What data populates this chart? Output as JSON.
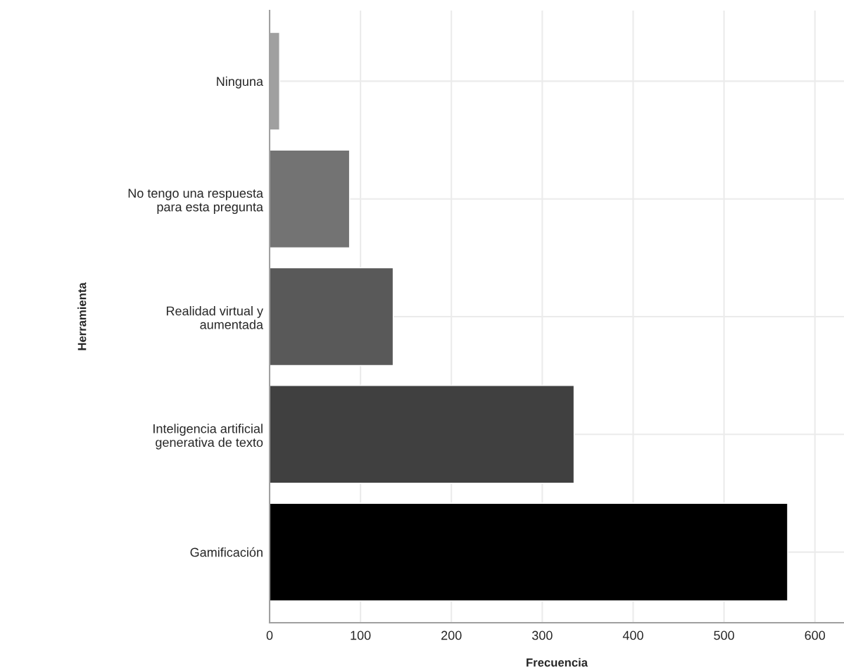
{
  "chart_data": {
    "type": "bar",
    "orientation": "horizontal",
    "xlabel": "Frecuencia",
    "ylabel": "Herramienta",
    "categories": [
      "Ninguna",
      "No tengo una respuesta\npara esta pregunta",
      "Realidad virtual y\naumentada",
      "Inteligencia artificial\ngenerativa de texto",
      "Gamificación"
    ],
    "values": [
      11,
      88,
      136,
      335,
      570
    ],
    "colors": [
      "#a0a0a0",
      "#737373",
      "#595959",
      "#404040",
      "#000000"
    ],
    "xlim": [
      0,
      632
    ],
    "xticks": [
      0,
      100,
      200,
      300,
      400,
      500,
      600
    ],
    "grid": true
  }
}
